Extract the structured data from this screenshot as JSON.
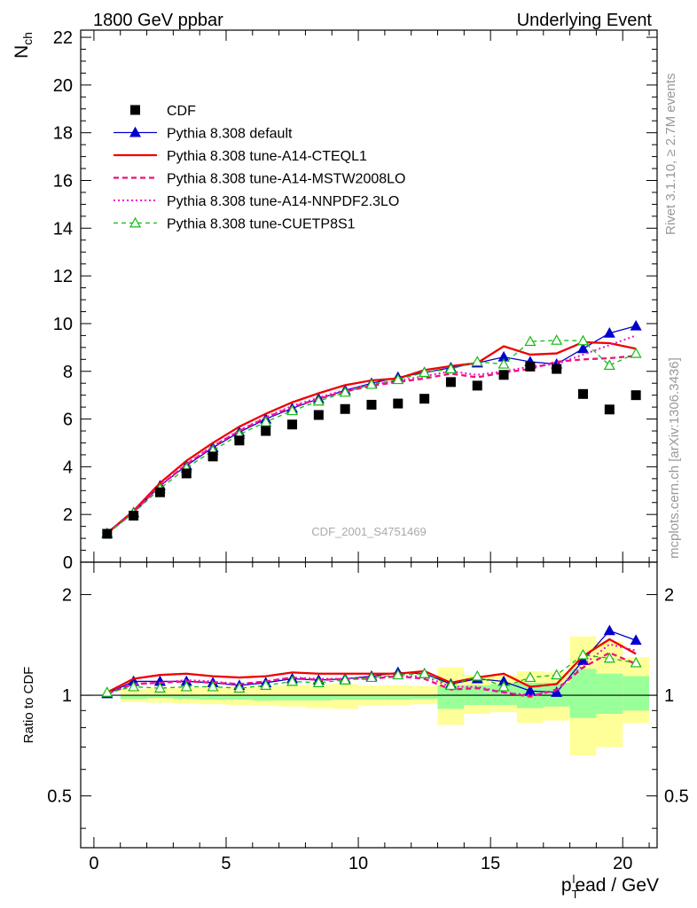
{
  "header": {
    "left": "1800 GeV ppbar",
    "right": "Underlying Event"
  },
  "side": {
    "rivet": "Rivet 3.1.10, ≥ 2.7M events",
    "mcplots": "mcplots.cern.ch [arXiv:1306.3436]"
  },
  "watermark": "CDF_2001_S4751469",
  "colors": {
    "cdf": "#000000",
    "default": "#0000cc",
    "cteql1": "#ee0000",
    "mstw": "#ee1177",
    "nnpdf": "#ee11cc",
    "cuetp8s1": "#11bb11",
    "band_inner": "#99ff99",
    "band_outer": "#ffff99"
  },
  "chart_data": [
    {
      "type": "line",
      "ylabel_main": "N",
      "ylabel_sub": "ch",
      "ylim": [
        0,
        22.3
      ],
      "yticks": [
        "0",
        "2",
        "4",
        "6",
        "8",
        "10",
        "12",
        "14",
        "16",
        "18",
        "20",
        "22"
      ],
      "x": [
        0.5,
        1.5,
        2.5,
        3.5,
        4.5,
        5.5,
        6.5,
        7.5,
        8.5,
        9.5,
        10.5,
        11.5,
        12.5,
        13.5,
        14.5,
        15.5,
        16.5,
        17.5,
        18.5,
        19.5,
        20.5
      ],
      "series": [
        {
          "name": "CDF",
          "key": "cdf",
          "values": [
            1.19,
            1.95,
            2.93,
            3.72,
            4.43,
            5.1,
            5.5,
            5.77,
            6.17,
            6.42,
            6.6,
            6.65,
            6.85,
            7.55,
            7.4,
            7.85,
            8.2,
            8.1,
            7.05,
            6.4,
            7.0
          ]
        },
        {
          "name": "Pythia 8.308 default",
          "key": "default",
          "values": [
            1.2,
            2.08,
            3.2,
            4.05,
            4.8,
            5.45,
            6.0,
            6.45,
            6.85,
            7.2,
            7.5,
            7.75,
            7.95,
            8.15,
            8.35,
            8.6,
            8.4,
            8.3,
            8.95,
            9.6,
            9.9
          ]
        },
        {
          "name": "Pythia 8.308 tune-A14-CTEQL1",
          "key": "cteql1",
          "values": [
            1.22,
            2.15,
            3.32,
            4.25,
            5.0,
            5.68,
            6.22,
            6.7,
            7.08,
            7.42,
            7.62,
            7.7,
            8.05,
            8.22,
            8.35,
            9.05,
            8.7,
            8.75,
            9.22,
            9.18,
            8.95
          ]
        },
        {
          "name": "Pythia 8.308 tune-A14-MSTW2008LO",
          "key": "mstw",
          "values": [
            1.2,
            2.1,
            3.2,
            4.1,
            4.85,
            5.5,
            6.05,
            6.5,
            6.85,
            7.15,
            7.4,
            7.55,
            7.7,
            7.9,
            7.75,
            7.95,
            8.1,
            8.4,
            8.5,
            8.55,
            8.65
          ]
        },
        {
          "name": "Pythia 8.308 tune-A14-NNPDF2.3LO",
          "key": "nnpdf",
          "values": [
            1.2,
            2.1,
            3.2,
            4.12,
            4.87,
            5.52,
            6.08,
            6.55,
            6.9,
            7.22,
            7.45,
            7.6,
            7.8,
            8.0,
            7.85,
            8.0,
            8.2,
            8.3,
            8.7,
            9.1,
            9.5
          ]
        },
        {
          "name": "Pythia 8.308 tune-CUETP8S1",
          "key": "cuetp8s1",
          "values": [
            1.21,
            2.06,
            3.08,
            3.95,
            4.68,
            5.35,
            5.88,
            6.35,
            6.75,
            7.12,
            7.45,
            7.65,
            7.95,
            8.1,
            8.4,
            8.3,
            9.25,
            9.3,
            9.28,
            8.25,
            8.75
          ]
        }
      ],
      "legend_placement": "top-left"
    },
    {
      "type": "line",
      "ylabel": "Ratio to CDF",
      "ylog": true,
      "ylim": [
        0.35,
        2.5
      ],
      "yticks": [
        "0.5",
        "1",
        "2"
      ],
      "xlabel_main": "p",
      "xlabel_sub": "T",
      "xlabel_sup": "l",
      "xlabel_rest": "ead / GeV",
      "xlim": [
        -0.5,
        21.3
      ],
      "xticks": [
        "0",
        "5",
        "10",
        "15",
        "20"
      ],
      "band_x_edges": [
        1,
        2,
        3,
        4,
        5,
        6,
        7,
        8,
        9,
        10,
        11,
        12,
        13,
        14,
        15,
        16,
        17,
        18,
        19,
        20,
        21
      ],
      "band_inner": [
        [
          0.985,
          1.0
        ],
        [
          0.975,
          1.0
        ],
        [
          0.98,
          1.0
        ],
        [
          0.975,
          1.0
        ],
        [
          0.97,
          1.0
        ],
        [
          0.97,
          1.0
        ],
        [
          0.965,
          1.0
        ],
        [
          0.965,
          1.0
        ],
        [
          0.965,
          1.0
        ],
        [
          0.97,
          1.0
        ],
        [
          0.97,
          1.0
        ],
        [
          0.97,
          1.0
        ],
        [
          0.975,
          1.0
        ],
        [
          0.91,
          1.07
        ],
        [
          0.935,
          1.07
        ],
        [
          0.935,
          1.08
        ],
        [
          0.915,
          1.09
        ],
        [
          0.925,
          1.09
        ],
        [
          0.855,
          1.2
        ],
        [
          0.88,
          1.16
        ],
        [
          0.9,
          1.14
        ]
      ],
      "band_outer": [
        [
          0.96,
          1.04
        ],
        [
          0.955,
          1.045
        ],
        [
          0.95,
          1.05
        ],
        [
          0.945,
          1.055
        ],
        [
          0.94,
          1.055
        ],
        [
          0.935,
          1.06
        ],
        [
          0.93,
          1.065
        ],
        [
          0.925,
          1.07
        ],
        [
          0.915,
          1.075
        ],
        [
          0.91,
          1.08
        ],
        [
          0.93,
          1.07
        ],
        [
          0.935,
          1.07
        ],
        [
          0.94,
          1.065
        ],
        [
          0.815,
          1.21
        ],
        [
          0.88,
          1.15
        ],
        [
          0.89,
          1.15
        ],
        [
          0.825,
          1.18
        ],
        [
          0.84,
          1.17
        ],
        [
          0.66,
          1.5
        ],
        [
          0.7,
          1.45
        ],
        [
          0.825,
          1.3
        ]
      ],
      "series": [
        {
          "name": "Pythia 8.308 default",
          "key": "default",
          "values": [
            1.01,
            1.1,
            1.1,
            1.1,
            1.09,
            1.07,
            1.09,
            1.12,
            1.11,
            1.12,
            1.14,
            1.17,
            1.16,
            1.08,
            1.12,
            1.1,
            1.03,
            1.02,
            1.27,
            1.56,
            1.46
          ]
        },
        {
          "name": "Pythia 8.308 tune-A14-CTEQL1",
          "key": "cteql1",
          "values": [
            1.02,
            1.12,
            1.15,
            1.16,
            1.14,
            1.13,
            1.14,
            1.17,
            1.16,
            1.16,
            1.16,
            1.16,
            1.18,
            1.09,
            1.13,
            1.16,
            1.06,
            1.08,
            1.31,
            1.47,
            1.33
          ]
        },
        {
          "name": "Pythia 8.308 tune-A14-MSTW2008LO",
          "key": "mstw",
          "values": [
            1.01,
            1.08,
            1.09,
            1.1,
            1.09,
            1.08,
            1.1,
            1.13,
            1.11,
            1.12,
            1.12,
            1.14,
            1.12,
            1.04,
            1.05,
            1.02,
            0.99,
            1.04,
            1.21,
            1.34,
            1.24
          ]
        },
        {
          "name": "Pythia 8.308 tune-A14-NNPDF2.3LO",
          "key": "nnpdf",
          "values": [
            1.01,
            1.08,
            1.09,
            1.11,
            1.1,
            1.08,
            1.1,
            1.13,
            1.12,
            1.12,
            1.13,
            1.14,
            1.14,
            1.06,
            1.06,
            1.02,
            1.0,
            1.03,
            1.23,
            1.42,
            1.36
          ]
        },
        {
          "name": "Pythia 8.308 tune-CUETP8S1",
          "key": "cuetp8s1",
          "values": [
            1.02,
            1.06,
            1.05,
            1.06,
            1.06,
            1.05,
            1.07,
            1.1,
            1.09,
            1.11,
            1.13,
            1.15,
            1.16,
            1.07,
            1.14,
            1.06,
            1.13,
            1.15,
            1.32,
            1.29,
            1.25
          ]
        }
      ]
    }
  ]
}
